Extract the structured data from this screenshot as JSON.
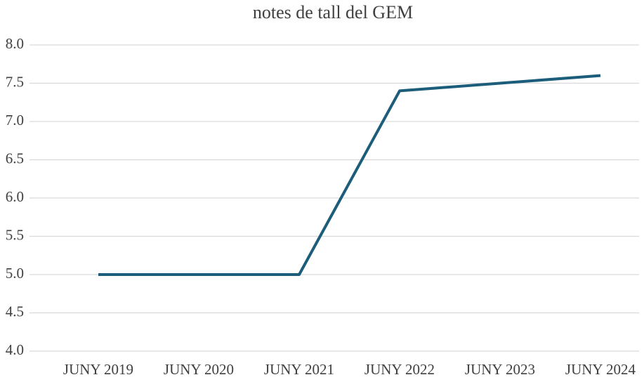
{
  "chart_data": {
    "type": "line",
    "title": "notes de tall del GEM",
    "categories": [
      "JUNY 2019",
      "JUNY 2020",
      "JUNY 2021",
      "JUNY 2022",
      "JUNY 2023",
      "JUNY 2024"
    ],
    "series": [
      {
        "color": "#1b5d7a",
        "values": [
          5,
          5,
          5,
          7.4,
          7.5,
          7.6
        ]
      }
    ],
    "ylim": [
      4,
      8
    ],
    "yticks": [
      {
        "value": 4,
        "label": "4.0"
      },
      4.5,
      {
        "value": 5,
        "label": "5.0"
      },
      5.5,
      {
        "value": 6,
        "label": "6.0"
      },
      6.5,
      {
        "value": 7,
        "label": "7.0"
      },
      7.5,
      {
        "value": 8,
        "label": "8.0"
      }
    ],
    "grid": true
  }
}
